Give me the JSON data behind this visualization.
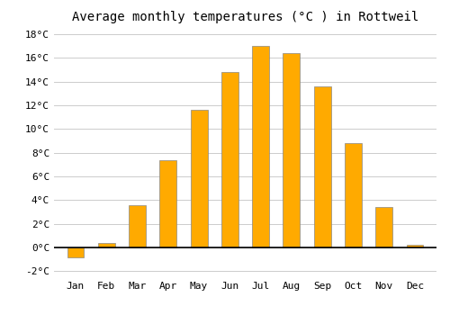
{
  "title": "Average monthly temperatures (°C ) in Rottweil",
  "months": [
    "Jan",
    "Feb",
    "Mar",
    "Apr",
    "May",
    "Jun",
    "Jul",
    "Aug",
    "Sep",
    "Oct",
    "Nov",
    "Dec"
  ],
  "values": [
    -0.8,
    0.4,
    3.6,
    7.4,
    11.6,
    14.8,
    17.0,
    16.4,
    13.6,
    8.8,
    3.4,
    0.2
  ],
  "bar_color": "#FFAA00",
  "bar_edge_color": "#888888",
  "background_color": "#FFFFFF",
  "grid_color": "#CCCCCC",
  "ylim": [
    -2.5,
    18.5
  ],
  "yticks": [
    -2,
    0,
    2,
    4,
    6,
    8,
    10,
    12,
    14,
    16,
    18
  ],
  "ylabel_suffix": "°C",
  "title_fontsize": 10,
  "tick_fontsize": 8,
  "bar_width": 0.55
}
